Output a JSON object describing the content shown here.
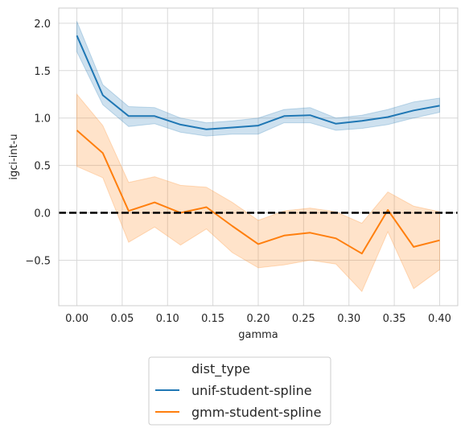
{
  "chart_data": {
    "type": "line",
    "xlabel": "gamma",
    "ylabel": "igci-int-u",
    "xlim": [
      -0.02,
      0.42
    ],
    "ylim": [
      -0.98,
      2.16
    ],
    "xticks": [
      "0.00",
      "0.05",
      "0.10",
      "0.15",
      "0.20",
      "0.25",
      "0.30",
      "0.35",
      "0.40"
    ],
    "yticks": [
      "−0.5",
      "0.0",
      "0.5",
      "1.0",
      "1.5",
      "2.0"
    ],
    "grid": true,
    "reference_line": {
      "y": 0.0,
      "style": "dashed",
      "color": "#000000"
    },
    "legend": {
      "title": "dist_type",
      "placement": "bottom-center-outside"
    },
    "x": [
      0.0,
      0.0286,
      0.0571,
      0.0857,
      0.1143,
      0.1429,
      0.1714,
      0.2,
      0.2286,
      0.2571,
      0.2857,
      0.3143,
      0.3429,
      0.3714,
      0.4
    ],
    "series": [
      {
        "name": "unif-student-spline",
        "color": "#1f77b4",
        "values": [
          1.87,
          1.24,
          1.02,
          1.02,
          0.93,
          0.88,
          0.9,
          0.92,
          1.02,
          1.03,
          0.94,
          0.97,
          1.01,
          1.08,
          1.13
        ],
        "ci_low": [
          1.7,
          1.14,
          0.91,
          0.94,
          0.85,
          0.81,
          0.83,
          0.83,
          0.95,
          0.95,
          0.87,
          0.89,
          0.93,
          1.0,
          1.06
        ],
        "ci_high": [
          2.02,
          1.35,
          1.12,
          1.11,
          1.0,
          0.95,
          0.97,
          1.0,
          1.09,
          1.11,
          1.0,
          1.03,
          1.09,
          1.17,
          1.21
        ]
      },
      {
        "name": "gmm-student-spline",
        "color": "#ff7f0e",
        "values": [
          0.87,
          0.63,
          0.02,
          0.11,
          0.0,
          0.06,
          -0.14,
          -0.33,
          -0.24,
          -0.21,
          -0.27,
          -0.43,
          0.03,
          -0.36,
          -0.29
        ],
        "ci_low": [
          0.49,
          0.37,
          -0.31,
          -0.15,
          -0.34,
          -0.17,
          -0.42,
          -0.58,
          -0.55,
          -0.5,
          -0.54,
          -0.83,
          -0.2,
          -0.8,
          -0.6
        ],
        "ci_high": [
          1.25,
          0.92,
          0.32,
          0.38,
          0.29,
          0.27,
          0.11,
          -0.08,
          0.02,
          0.05,
          0.01,
          -0.11,
          0.22,
          0.07,
          0.01
        ]
      }
    ]
  }
}
